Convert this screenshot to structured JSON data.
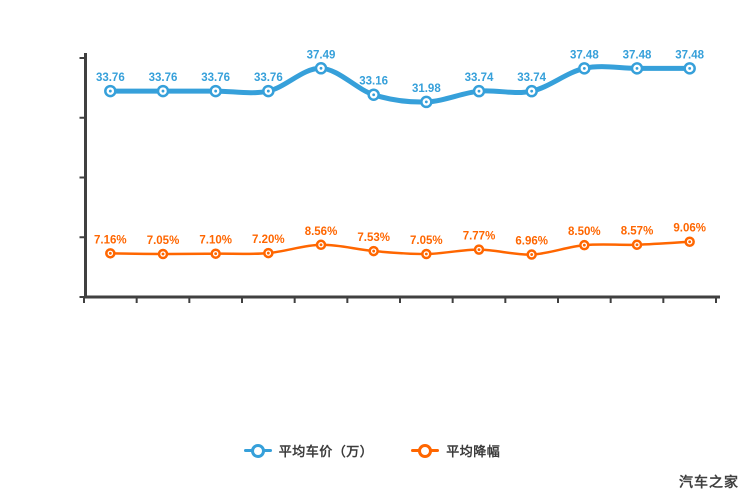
{
  "watermark": "汽车之家",
  "colors": {
    "series_blue": "#36a0da",
    "series_orange": "#ff6600",
    "axis": "#404040",
    "legend_text": "#3c3c3c",
    "background": "#ffffff"
  },
  "legend": {
    "items": [
      {
        "label": "平均车价（万）",
        "color": "#36a0da"
      },
      {
        "label": "平均降幅",
        "color": "#ff6600"
      }
    ]
  },
  "chart_data": {
    "type": "line",
    "smooth": true,
    "grid": false,
    "legend_position": "bottom",
    "axis_tick_labels_visible": false,
    "ylim": [
      0,
      40
    ],
    "y_tick_count": 5,
    "x_tick_count": 13,
    "series": [
      {
        "name": "平均车价（万）",
        "color": "#36a0da",
        "line_width": 5,
        "marker_radius": 5,
        "values": [
          33.76,
          33.76,
          33.76,
          33.76,
          37.49,
          33.16,
          31.98,
          33.74,
          33.74,
          37.48,
          37.48,
          37.48
        ],
        "labels": [
          "33.76",
          "33.76",
          "33.76",
          "33.76",
          "37.49",
          "33.16",
          "31.98",
          "33.74",
          "33.74",
          "37.48",
          "37.48",
          "37.48"
        ]
      },
      {
        "name": "平均降幅",
        "color": "#ff6600",
        "line_width": 2.5,
        "marker_radius": 4,
        "values": [
          7.16,
          7.05,
          7.1,
          7.2,
          8.56,
          7.53,
          7.05,
          7.77,
          6.96,
          8.5,
          8.57,
          9.06
        ],
        "labels": [
          "7.16%",
          "7.05%",
          "7.10%",
          "7.20%",
          "8.56%",
          "7.53%",
          "7.05%",
          "7.77%",
          "6.96%",
          "8.50%",
          "8.57%",
          "9.06%"
        ]
      }
    ]
  }
}
